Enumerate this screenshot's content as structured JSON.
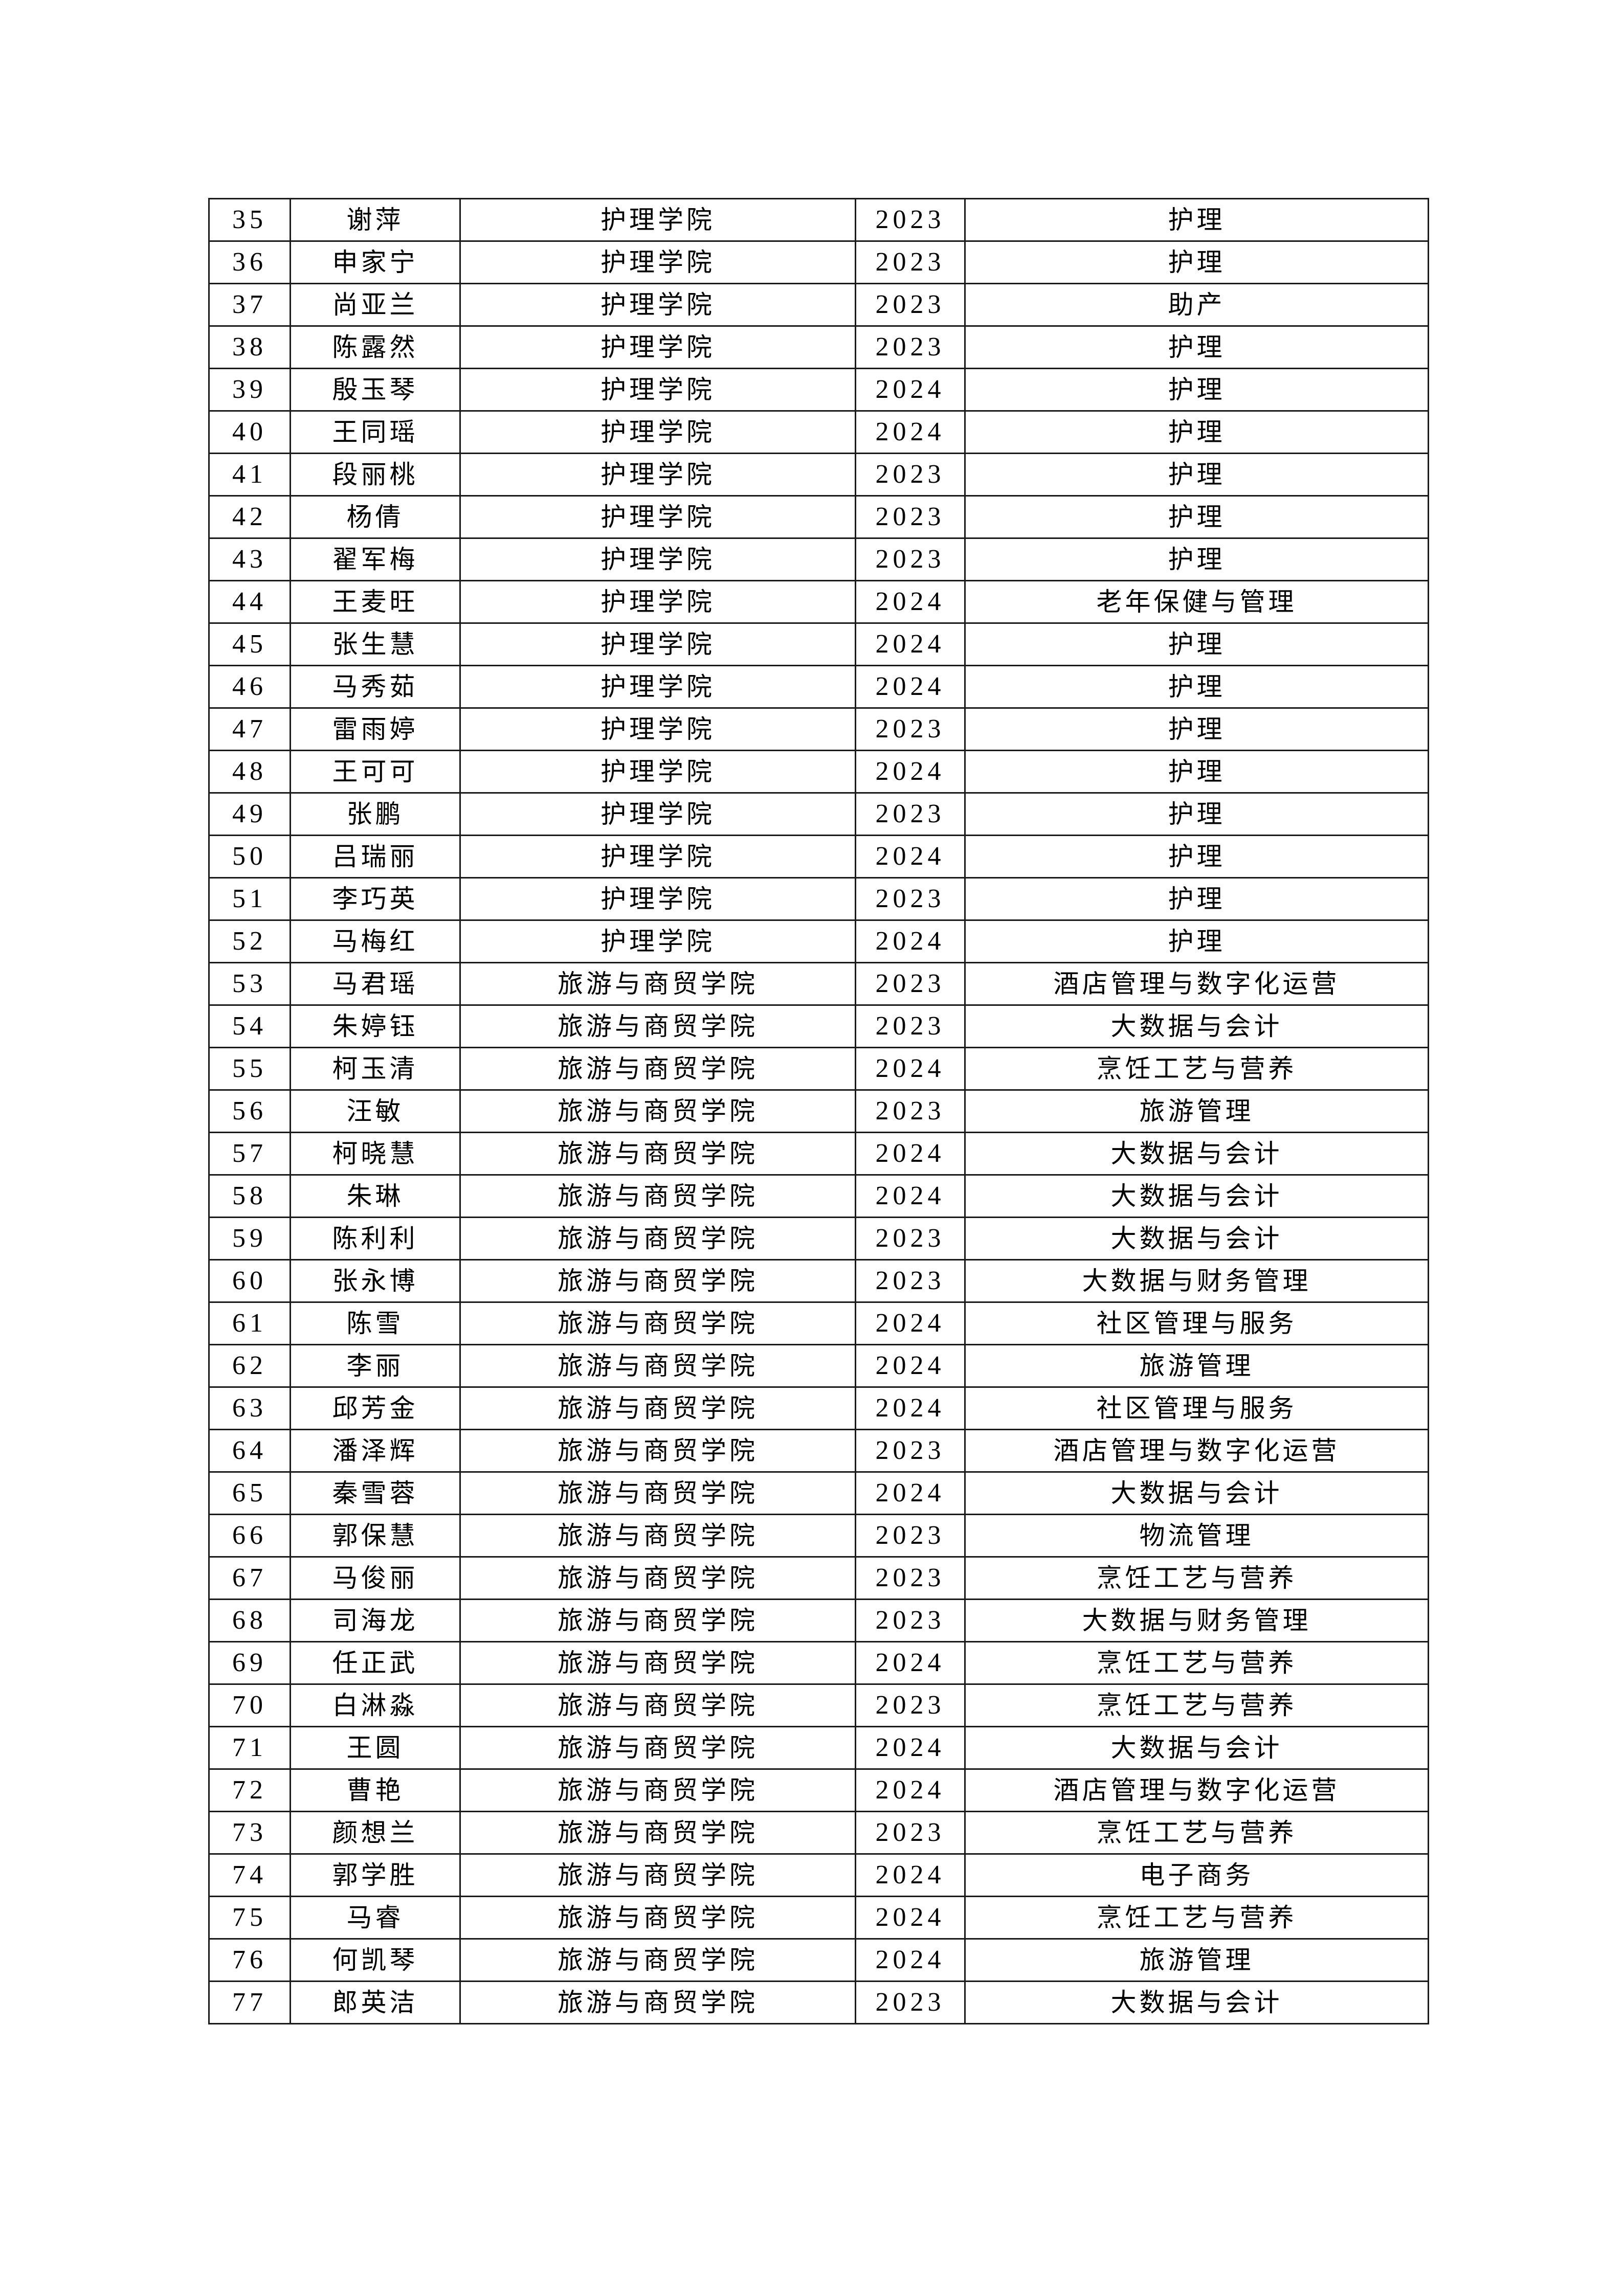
{
  "rows": [
    [
      "35",
      "谢萍",
      "护理学院",
      "2023",
      "护理"
    ],
    [
      "36",
      "申家宁",
      "护理学院",
      "2023",
      "护理"
    ],
    [
      "37",
      "尚亚兰",
      "护理学院",
      "2023",
      "助产"
    ],
    [
      "38",
      "陈露然",
      "护理学院",
      "2023",
      "护理"
    ],
    [
      "39",
      "殷玉琴",
      "护理学院",
      "2024",
      "护理"
    ],
    [
      "40",
      "王同瑶",
      "护理学院",
      "2024",
      "护理"
    ],
    [
      "41",
      "段丽桃",
      "护理学院",
      "2023",
      "护理"
    ],
    [
      "42",
      "杨倩",
      "护理学院",
      "2023",
      "护理"
    ],
    [
      "43",
      "翟军梅",
      "护理学院",
      "2023",
      "护理"
    ],
    [
      "44",
      "王麦旺",
      "护理学院",
      "2024",
      "老年保健与管理"
    ],
    [
      "45",
      "张生慧",
      "护理学院",
      "2024",
      "护理"
    ],
    [
      "46",
      "马秀茹",
      "护理学院",
      "2024",
      "护理"
    ],
    [
      "47",
      "雷雨婷",
      "护理学院",
      "2023",
      "护理"
    ],
    [
      "48",
      "王可可",
      "护理学院",
      "2024",
      "护理"
    ],
    [
      "49",
      "张鹏",
      "护理学院",
      "2023",
      "护理"
    ],
    [
      "50",
      "吕瑞丽",
      "护理学院",
      "2024",
      "护理"
    ],
    [
      "51",
      "李巧英",
      "护理学院",
      "2023",
      "护理"
    ],
    [
      "52",
      "马梅红",
      "护理学院",
      "2024",
      "护理"
    ],
    [
      "53",
      "马君瑶",
      "旅游与商贸学院",
      "2023",
      "酒店管理与数字化运营"
    ],
    [
      "54",
      "朱婷钰",
      "旅游与商贸学院",
      "2023",
      "大数据与会计"
    ],
    [
      "55",
      "柯玉清",
      "旅游与商贸学院",
      "2024",
      "烹饪工艺与营养"
    ],
    [
      "56",
      "汪敏",
      "旅游与商贸学院",
      "2023",
      "旅游管理"
    ],
    [
      "57",
      "柯晓慧",
      "旅游与商贸学院",
      "2024",
      "大数据与会计"
    ],
    [
      "58",
      "朱琳",
      "旅游与商贸学院",
      "2024",
      "大数据与会计"
    ],
    [
      "59",
      "陈利利",
      "旅游与商贸学院",
      "2023",
      "大数据与会计"
    ],
    [
      "60",
      "张永博",
      "旅游与商贸学院",
      "2023",
      "大数据与财务管理"
    ],
    [
      "61",
      "陈雪",
      "旅游与商贸学院",
      "2024",
      "社区管理与服务"
    ],
    [
      "62",
      "李丽",
      "旅游与商贸学院",
      "2024",
      "旅游管理"
    ],
    [
      "63",
      "邱芳金",
      "旅游与商贸学院",
      "2024",
      "社区管理与服务"
    ],
    [
      "64",
      "潘泽辉",
      "旅游与商贸学院",
      "2023",
      "酒店管理与数字化运营"
    ],
    [
      "65",
      "秦雪蓉",
      "旅游与商贸学院",
      "2024",
      "大数据与会计"
    ],
    [
      "66",
      "郭保慧",
      "旅游与商贸学院",
      "2023",
      "物流管理"
    ],
    [
      "67",
      "马俊丽",
      "旅游与商贸学院",
      "2023",
      "烹饪工艺与营养"
    ],
    [
      "68",
      "司海龙",
      "旅游与商贸学院",
      "2023",
      "大数据与财务管理"
    ],
    [
      "69",
      "任正武",
      "旅游与商贸学院",
      "2024",
      "烹饪工艺与营养"
    ],
    [
      "70",
      "白淋淼",
      "旅游与商贸学院",
      "2023",
      "烹饪工艺与营养"
    ],
    [
      "71",
      "王圆",
      "旅游与商贸学院",
      "2024",
      "大数据与会计"
    ],
    [
      "72",
      "曹艳",
      "旅游与商贸学院",
      "2024",
      "酒店管理与数字化运营"
    ],
    [
      "73",
      "颜想兰",
      "旅游与商贸学院",
      "2023",
      "烹饪工艺与营养"
    ],
    [
      "74",
      "郭学胜",
      "旅游与商贸学院",
      "2024",
      "电子商务"
    ],
    [
      "75",
      "马睿",
      "旅游与商贸学院",
      "2024",
      "烹饪工艺与营养"
    ],
    [
      "76",
      "何凯琴",
      "旅游与商贸学院",
      "2024",
      "旅游管理"
    ],
    [
      "77",
      "郎英洁",
      "旅游与商贸学院",
      "2023",
      "大数据与会计"
    ]
  ]
}
